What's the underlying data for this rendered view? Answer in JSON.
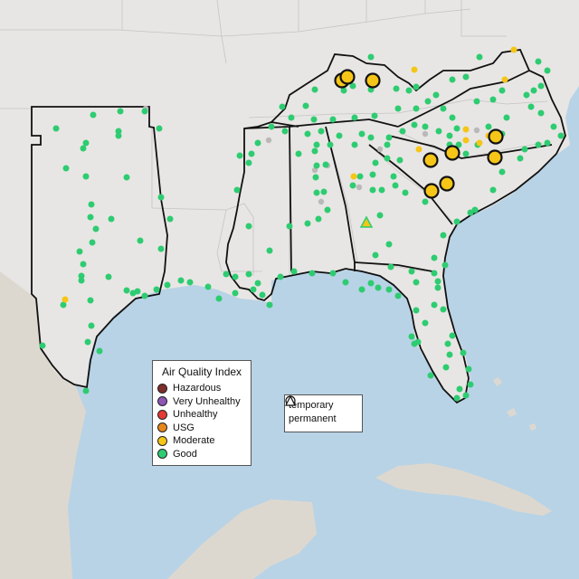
{
  "map": {
    "region": "Southeastern United States",
    "colors": {
      "ocean": "#b8d3e6",
      "land": "#e8e6e4",
      "mexico_cuba": "#ddd8cf",
      "state_border": "#c4c4c4",
      "highlight_border": "#111111"
    }
  },
  "aqi_legend": {
    "title": "Air Quality Index",
    "categories": [
      {
        "label": "Hazardous",
        "color": "#7e2f2a"
      },
      {
        "label": "Very Unhealthy",
        "color": "#8e55b4"
      },
      {
        "label": "Unhealthy",
        "color": "#e53935"
      },
      {
        "label": "USG",
        "color": "#e6861b"
      },
      {
        "label": "Moderate",
        "color": "#f5c518"
      },
      {
        "label": "Good",
        "color": "#2ecc71"
      }
    ]
  },
  "type_legend": {
    "items": [
      {
        "label": "temporary",
        "icon": "circle-icon"
      },
      {
        "label": "permanent",
        "icon": "triangle-icon"
      }
    ]
  },
  "station_colors": {
    "good": "#2ecc71",
    "moderate": "#f5c518",
    "no_data": "#b9b9b9",
    "outline": "#111111"
  }
}
